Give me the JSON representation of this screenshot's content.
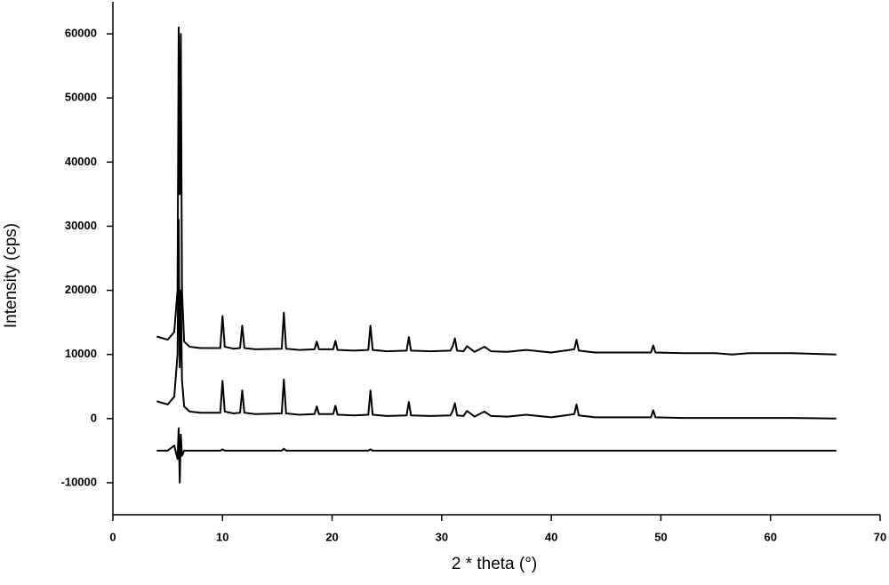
{
  "chart_data": {
    "type": "line",
    "xlabel": "2 * theta  (°)",
    "ylabel": "Intensity (cps)",
    "xlim": [
      0,
      70
    ],
    "ylim": [
      -15000,
      65000
    ],
    "xticks": [
      0,
      10,
      20,
      30,
      40,
      50,
      60,
      70
    ],
    "yticks": [
      -10000,
      0,
      10000,
      20000,
      30000,
      40000,
      50000,
      60000
    ],
    "x": [
      4,
      5,
      5.6,
      5.9,
      6.0,
      6.1,
      6.2,
      6.3,
      6.5,
      7,
      8,
      9.8,
      10.0,
      10.2,
      11,
      11.6,
      11.8,
      12.0,
      13,
      15.4,
      15.6,
      15.8,
      17,
      18.4,
      18.6,
      18.8,
      20.1,
      20.3,
      20.5,
      22,
      23.3,
      23.5,
      23.7,
      25,
      26.8,
      27.0,
      27.2,
      29,
      30.8,
      31.0,
      31.2,
      31.4,
      32,
      32.3,
      33,
      33.9,
      34.5,
      36,
      37.7,
      40,
      42.1,
      42.3,
      42.5,
      44,
      47,
      49.1,
      49.3,
      49.5,
      52,
      55,
      56.5,
      58,
      62,
      66
    ],
    "series": [
      {
        "color": "#000000",
        "values": [
          12800,
          12300,
          13500,
          20000,
          61000,
          35000,
          60000,
          20000,
          12000,
          11200,
          11000,
          11000,
          16000,
          11200,
          10900,
          11000,
          14500,
          11000,
          10800,
          10900,
          16500,
          10900,
          10700,
          10800,
          12000,
          10800,
          10800,
          12100,
          10700,
          10600,
          10700,
          14500,
          10700,
          10500,
          10600,
          12700,
          10600,
          10500,
          10600,
          11300,
          12500,
          10600,
          10500,
          11300,
          10400,
          11200,
          10500,
          10400,
          10700,
          10300,
          10800,
          12300,
          10600,
          10300,
          10300,
          10300,
          11400,
          10300,
          10200,
          10200,
          10000,
          10200,
          10200,
          10000
        ]
      },
      {
        "color": "#000000",
        "values": [
          2700,
          2200,
          3400,
          10000,
          31000,
          8000,
          20000,
          6000,
          1900,
          1100,
          900,
          900,
          5900,
          1100,
          800,
          900,
          4400,
          900,
          700,
          800,
          6100,
          800,
          600,
          700,
          1900,
          700,
          700,
          2000,
          600,
          500,
          600,
          4400,
          600,
          400,
          500,
          2600,
          500,
          400,
          500,
          1200,
          2400,
          500,
          400,
          1200,
          300,
          1100,
          400,
          300,
          600,
          200,
          700,
          2200,
          500,
          200,
          200,
          200,
          1300,
          200,
          100,
          100,
          100,
          100,
          100,
          0
        ]
      },
      {
        "color": "#000000",
        "values": [
          -5000,
          -5000,
          -4200,
          -6300,
          -1500,
          -10000,
          -2500,
          -5800,
          -5000,
          -5000,
          -5000,
          -5000,
          -4800,
          -5000,
          -5000,
          -5000,
          -5000,
          -5000,
          -5000,
          -5000,
          -4700,
          -5000,
          -5000,
          -5000,
          -5000,
          -5000,
          -5000,
          -5000,
          -5000,
          -5000,
          -5000,
          -4800,
          -5000,
          -5000,
          -5000,
          -5000,
          -5000,
          -5000,
          -5000,
          -5000,
          -5000,
          -5000,
          -5000,
          -5000,
          -5000,
          -5000,
          -5000,
          -5000,
          -5000,
          -5000,
          -5000,
          -5000,
          -5000,
          -5000,
          -5000,
          -5000,
          -5000,
          -5000,
          -5000,
          -5000,
          -5000,
          -5000,
          -5000,
          -5000
        ]
      }
    ]
  }
}
